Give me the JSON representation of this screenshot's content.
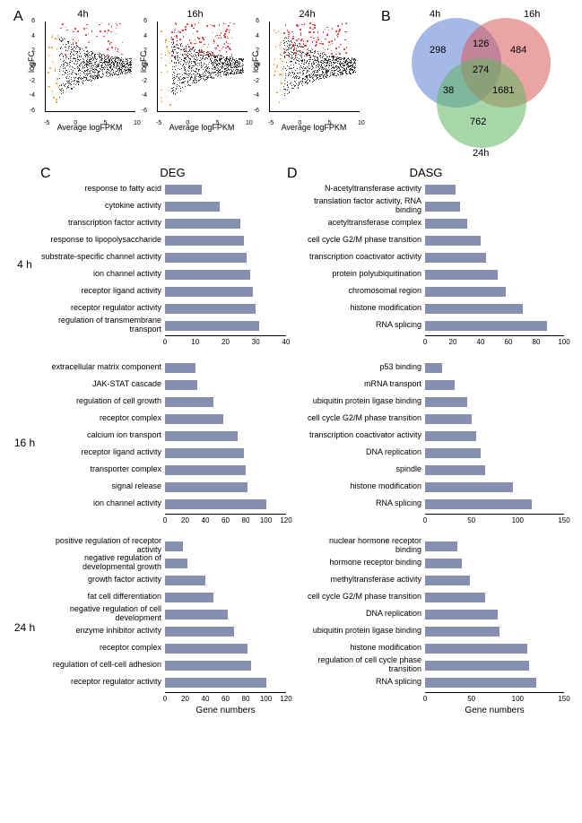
{
  "panelA": {
    "label": "A",
    "plots": [
      {
        "title": "4h",
        "xlabel": "Average logFPKM",
        "ylabel": "logFC"
      },
      {
        "title": "16h",
        "xlabel": "Average logFPKM",
        "ylabel": "logFC"
      },
      {
        "title": "24h",
        "xlabel": "Average logFPKM",
        "ylabel": "logFC"
      }
    ],
    "yticks": [
      "-6",
      "-4",
      "-2",
      "0",
      "2",
      "4",
      "6"
    ],
    "xticks": [
      "-5",
      "0",
      "5",
      "10"
    ],
    "colors": {
      "black": "#000000",
      "red": "#e03030",
      "orange": "#f0a030"
    }
  },
  "panelB": {
    "label": "B",
    "sets": [
      {
        "name": "4h",
        "color": "#5b7fd6"
      },
      {
        "name": "16h",
        "color": "#d85a5a"
      },
      {
        "name": "24h",
        "color": "#5fb760"
      }
    ],
    "values": {
      "only4": "298",
      "only16": "484",
      "only24": "762",
      "v4_16": "126",
      "v4_24": "38",
      "v16_24": "1681",
      "all": "274"
    }
  },
  "panelC": {
    "label": "C",
    "title": "DEG",
    "xlabel": "Gene numbers",
    "groups": [
      {
        "time": "4 h",
        "xmax": 40,
        "ticks": [
          0,
          10,
          20,
          30,
          40
        ],
        "bars": [
          {
            "label": "response to fatty acid",
            "v": 12
          },
          {
            "label": "cytokine activity",
            "v": 18
          },
          {
            "label": "transcription factor activity",
            "v": 25
          },
          {
            "label": "response to lipopolysaccharide",
            "v": 26
          },
          {
            "label": "substrate-specific channel activity",
            "v": 27
          },
          {
            "label": "ion channel activity",
            "v": 28
          },
          {
            "label": "receptor ligand activity",
            "v": 29
          },
          {
            "label": "receptor regulator activity",
            "v": 30
          },
          {
            "label": "regulation of transmembrane transport",
            "v": 31
          }
        ]
      },
      {
        "time": "16 h",
        "xmax": 120,
        "ticks": [
          0,
          20,
          40,
          60,
          80,
          100,
          120
        ],
        "bars": [
          {
            "label": "extracellular matrix component",
            "v": 30
          },
          {
            "label": "JAK-STAT cascade",
            "v": 32
          },
          {
            "label": "regulation of cell growth",
            "v": 48
          },
          {
            "label": "receptor complex",
            "v": 58
          },
          {
            "label": "calcium ion transport",
            "v": 72
          },
          {
            "label": "receptor ligand activity",
            "v": 78
          },
          {
            "label": "transporter complex",
            "v": 80
          },
          {
            "label": "signal release",
            "v": 82
          },
          {
            "label": "ion channel activity",
            "v": 100
          }
        ]
      },
      {
        "time": "24 h",
        "xmax": 120,
        "ticks": [
          0,
          20,
          40,
          60,
          80,
          100,
          120
        ],
        "bars": [
          {
            "label": "positive regulation of receptor activity",
            "v": 18
          },
          {
            "label": "negative regulation of developmental growth",
            "v": 22
          },
          {
            "label": "growth factor activity",
            "v": 40
          },
          {
            "label": "fat cell differentiation",
            "v": 48
          },
          {
            "label": "negative regulation of cell development",
            "v": 62
          },
          {
            "label": "enzyme inhibitor activity",
            "v": 68
          },
          {
            "label": "receptor complex",
            "v": 82
          },
          {
            "label": "regulation of cell-cell adhesion",
            "v": 85
          },
          {
            "label": "receptor regulator activity",
            "v": 100
          }
        ]
      }
    ]
  },
  "panelD": {
    "label": "D",
    "title": "DASG",
    "xlabel": "Gene numbers",
    "groups": [
      {
        "time": "4 h",
        "xmax": 100,
        "ticks": [
          0,
          20,
          40,
          60,
          80,
          100
        ],
        "bars": [
          {
            "label": "N-acetyltransferase activity",
            "v": 22
          },
          {
            "label": "translation factor activity, RNA binding",
            "v": 25
          },
          {
            "label": "acetyltransferase complex",
            "v": 30
          },
          {
            "label": "cell cycle G2/M phase transition",
            "v": 40
          },
          {
            "label": "transcription coactivator activity",
            "v": 44
          },
          {
            "label": "protein polyubiquitination",
            "v": 52
          },
          {
            "label": "chromosomal region",
            "v": 58
          },
          {
            "label": "histone modification",
            "v": 70
          },
          {
            "label": "RNA splicing",
            "v": 88
          }
        ]
      },
      {
        "time": "16 h",
        "xmax": 150,
        "ticks": [
          0,
          50,
          100,
          150
        ],
        "bars": [
          {
            "label": "p53 binding",
            "v": 18
          },
          {
            "label": "mRNA transport",
            "v": 32
          },
          {
            "label": "ubiquitin protein ligase binding",
            "v": 45
          },
          {
            "label": "cell cycle G2/M phase transition",
            "v": 50
          },
          {
            "label": "transcription coactivator activity",
            "v": 55
          },
          {
            "label": "DNA replication",
            "v": 60
          },
          {
            "label": "spindle",
            "v": 65
          },
          {
            "label": "histone modification",
            "v": 95
          },
          {
            "label": "RNA splicing",
            "v": 115
          }
        ]
      },
      {
        "time": "24 h",
        "xmax": 150,
        "ticks": [
          0,
          50,
          100,
          150
        ],
        "bars": [
          {
            "label": "nuclear hormone receptor binding",
            "v": 35
          },
          {
            "label": "hormone receptor binding",
            "v": 40
          },
          {
            "label": "methyltransferase activity",
            "v": 48
          },
          {
            "label": "cell cycle G2/M phase transition",
            "v": 65
          },
          {
            "label": "DNA replication",
            "v": 78
          },
          {
            "label": "ubiquitin protein ligase binding",
            "v": 80
          },
          {
            "label": "histone modification",
            "v": 110
          },
          {
            "label": "regulation of cell cycle phase transition",
            "v": 112
          },
          {
            "label": "RNA splicing",
            "v": 120
          }
        ]
      }
    ]
  },
  "style": {
    "bar_color": "#8590b0",
    "bg": "#ffffff"
  }
}
